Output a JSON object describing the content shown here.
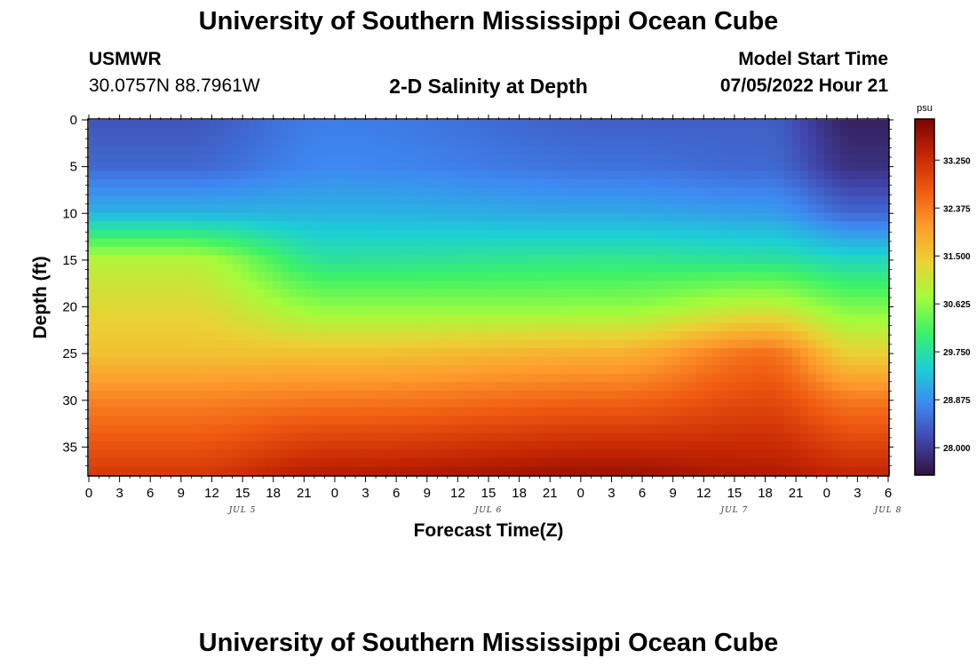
{
  "header": {
    "title": "University of Southern Mississippi Ocean Cube",
    "station_id": "USMWR",
    "coordinates": "30.0757N  88.7961W",
    "subtitle": "2-D Salinity at Depth",
    "start_label": "Model Start Time",
    "start_value": "07/05/2022 Hour 21"
  },
  "footer": {
    "title": "University of Southern Mississippi Ocean Cube"
  },
  "chart_data": {
    "type": "heatmap",
    "title": "2-D Salinity at Depth",
    "xlabel": "Forecast Time(Z)",
    "ylabel": "Depth (ft)",
    "y_inverted": true,
    "ylim": [
      0,
      38
    ],
    "y_ticks": [
      0,
      5,
      10,
      15,
      20,
      25,
      30,
      35
    ],
    "x_tick_labels": [
      "0",
      "3",
      "6",
      "9",
      "12",
      "15",
      "18",
      "21",
      "0",
      "3",
      "6",
      "9",
      "12",
      "15",
      "18",
      "21",
      "0",
      "3",
      "6",
      "9",
      "12",
      "15",
      "18",
      "21",
      "0",
      "3",
      "6"
    ],
    "date_labels": [
      {
        "text": "JUL 5",
        "hours_from_start": 15
      },
      {
        "text": "JUL 6",
        "hours_from_start": 39
      },
      {
        "text": "JUL 7",
        "hours_from_start": 63
      },
      {
        "text": "JUL 8",
        "hours_from_start": 78
      }
    ],
    "x_range_hours": [
      0,
      78
    ],
    "colorbar": {
      "unit": "psu",
      "range": [
        27.5,
        34.0
      ],
      "ticks": [
        "33.250",
        "32.375",
        "31.500",
        "30.625",
        "29.750",
        "28.875",
        "28.000"
      ]
    },
    "colors": [
      "#30123b",
      "#4145ab",
      "#3e88f2",
      "#1ccfd5",
      "#3cf268",
      "#a4fc3b",
      "#ebd134",
      "#fe9b2d",
      "#ef5a11",
      "#c42503",
      "#7a0403"
    ],
    "depth_profile_samples": [
      {
        "hour": 9,
        "salinity_by_depth": {
          "0": 28.3,
          "5": 28.5,
          "10": 29.2,
          "15": 30.9,
          "20": 31.3,
          "25": 31.6,
          "30": 32.3,
          "35": 32.8
        }
      },
      {
        "hour": 24,
        "salinity_by_depth": {
          "0": 28.7,
          "5": 28.8,
          "10": 29.2,
          "15": 29.8,
          "20": 30.6,
          "25": 31.6,
          "30": 32.4,
          "35": 33.1
        }
      },
      {
        "hour": 51,
        "salinity_by_depth": {
          "0": 28.4,
          "5": 28.6,
          "10": 29.1,
          "15": 29.9,
          "20": 30.6,
          "25": 31.8,
          "30": 32.6,
          "35": 33.3
        }
      },
      {
        "hour": 66,
        "salinity_by_depth": {
          "0": 28.4,
          "5": 28.5,
          "10": 29.0,
          "15": 29.8,
          "20": 31.0,
          "25": 32.5,
          "30": 32.9,
          "35": 33.3
        }
      },
      {
        "hour": 75,
        "salinity_by_depth": {
          "0": 27.7,
          "5": 27.9,
          "10": 28.5,
          "15": 29.6,
          "20": 30.5,
          "25": 31.4,
          "30": 32.4,
          "35": 33.0
        }
      }
    ]
  }
}
